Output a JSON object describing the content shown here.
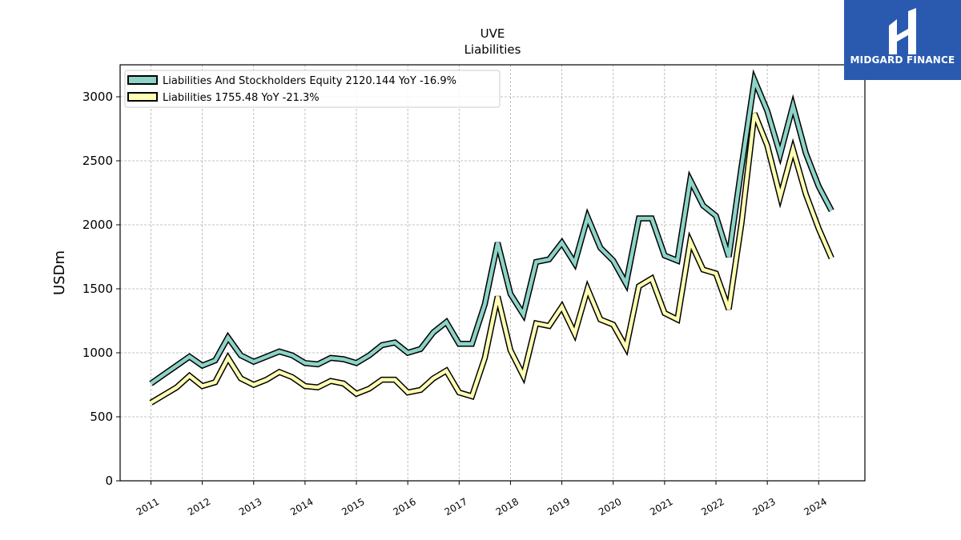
{
  "chart_data": {
    "type": "line",
    "title": "UVE",
    "subtitle": "Liabilities",
    "ylabel": "USDm",
    "xlabel": "",
    "ylim": [
      0,
      3250
    ],
    "xlim": [
      2010.4,
      2024.9
    ],
    "yticks": [
      0,
      500,
      1000,
      1500,
      2000,
      2500,
      3000
    ],
    "xticks": [
      "2011",
      "2012",
      "2013",
      "2014",
      "2015",
      "2016",
      "2017",
      "2018",
      "2019",
      "2020",
      "2021",
      "2022",
      "2023",
      "2024"
    ],
    "grid": true,
    "legend_position": "top-left",
    "series": [
      {
        "name": "Liabilities And Stockholders Equity",
        "legend_label": "Liabilities And Stockholders Equity  2120.144 YoY -16.9%",
        "color": "#8dd3c7",
        "points": [
          [
            2011.0,
            760
          ],
          [
            2011.25,
            830
          ],
          [
            2011.5,
            900
          ],
          [
            2011.75,
            970
          ],
          [
            2012.0,
            900
          ],
          [
            2012.25,
            940
          ],
          [
            2012.5,
            1120
          ],
          [
            2012.75,
            980
          ],
          [
            2013.0,
            930
          ],
          [
            2013.25,
            970
          ],
          [
            2013.5,
            1010
          ],
          [
            2013.75,
            980
          ],
          [
            2014.0,
            920
          ],
          [
            2014.25,
            910
          ],
          [
            2014.5,
            960
          ],
          [
            2014.75,
            950
          ],
          [
            2015.0,
            920
          ],
          [
            2015.25,
            980
          ],
          [
            2015.5,
            1060
          ],
          [
            2015.75,
            1080
          ],
          [
            2016.0,
            1000
          ],
          [
            2016.25,
            1030
          ],
          [
            2016.5,
            1160
          ],
          [
            2016.75,
            1240
          ],
          [
            2017.0,
            1070
          ],
          [
            2017.25,
            1070
          ],
          [
            2017.5,
            1380
          ],
          [
            2017.75,
            1860
          ],
          [
            2018.0,
            1460
          ],
          [
            2018.25,
            1300
          ],
          [
            2018.5,
            1710
          ],
          [
            2018.75,
            1730
          ],
          [
            2019.0,
            1860
          ],
          [
            2019.25,
            1700
          ],
          [
            2019.5,
            2060
          ],
          [
            2019.75,
            1820
          ],
          [
            2020.0,
            1720
          ],
          [
            2020.25,
            1540
          ],
          [
            2020.5,
            2050
          ],
          [
            2020.75,
            2050
          ],
          [
            2021.0,
            1760
          ],
          [
            2021.25,
            1720
          ],
          [
            2021.5,
            2350
          ],
          [
            2021.75,
            2150
          ],
          [
            2022.0,
            2070
          ],
          [
            2022.25,
            1750
          ],
          [
            2022.5,
            2460
          ],
          [
            2022.75,
            3130
          ],
          [
            2023.0,
            2890
          ],
          [
            2023.25,
            2550
          ],
          [
            2023.5,
            2930
          ],
          [
            2023.75,
            2560
          ],
          [
            2024.0,
            2300
          ],
          [
            2024.25,
            2110
          ]
        ]
      },
      {
        "name": "Liabilities",
        "legend_label": "Liabilities  1755.48 YoY -21.3%",
        "color": "#ffffb3",
        "points": [
          [
            2011.0,
            610
          ],
          [
            2011.25,
            670
          ],
          [
            2011.5,
            730
          ],
          [
            2011.75,
            820
          ],
          [
            2012.0,
            740
          ],
          [
            2012.25,
            770
          ],
          [
            2012.5,
            960
          ],
          [
            2012.75,
            800
          ],
          [
            2013.0,
            750
          ],
          [
            2013.25,
            790
          ],
          [
            2013.5,
            850
          ],
          [
            2013.75,
            810
          ],
          [
            2014.0,
            740
          ],
          [
            2014.25,
            730
          ],
          [
            2014.5,
            780
          ],
          [
            2014.75,
            760
          ],
          [
            2015.0,
            680
          ],
          [
            2015.25,
            720
          ],
          [
            2015.5,
            790
          ],
          [
            2015.75,
            790
          ],
          [
            2016.0,
            690
          ],
          [
            2016.25,
            710
          ],
          [
            2016.5,
            800
          ],
          [
            2016.75,
            860
          ],
          [
            2017.0,
            690
          ],
          [
            2017.25,
            660
          ],
          [
            2017.5,
            960
          ],
          [
            2017.75,
            1440
          ],
          [
            2018.0,
            1020
          ],
          [
            2018.25,
            820
          ],
          [
            2018.5,
            1230
          ],
          [
            2018.75,
            1210
          ],
          [
            2019.0,
            1360
          ],
          [
            2019.25,
            1150
          ],
          [
            2019.5,
            1500
          ],
          [
            2019.75,
            1260
          ],
          [
            2020.0,
            1220
          ],
          [
            2020.25,
            1040
          ],
          [
            2020.5,
            1520
          ],
          [
            2020.75,
            1580
          ],
          [
            2021.0,
            1310
          ],
          [
            2021.25,
            1260
          ],
          [
            2021.5,
            1870
          ],
          [
            2021.75,
            1650
          ],
          [
            2022.0,
            1620
          ],
          [
            2022.25,
            1340
          ],
          [
            2022.5,
            2020
          ],
          [
            2022.75,
            2870
          ],
          [
            2023.0,
            2620
          ],
          [
            2023.25,
            2220
          ],
          [
            2023.5,
            2590
          ],
          [
            2023.75,
            2240
          ],
          [
            2024.0,
            1970
          ],
          [
            2024.25,
            1740
          ]
        ]
      }
    ]
  },
  "logo": {
    "text": "MIDGARD FINANCE",
    "background": "#2a5ab0"
  }
}
